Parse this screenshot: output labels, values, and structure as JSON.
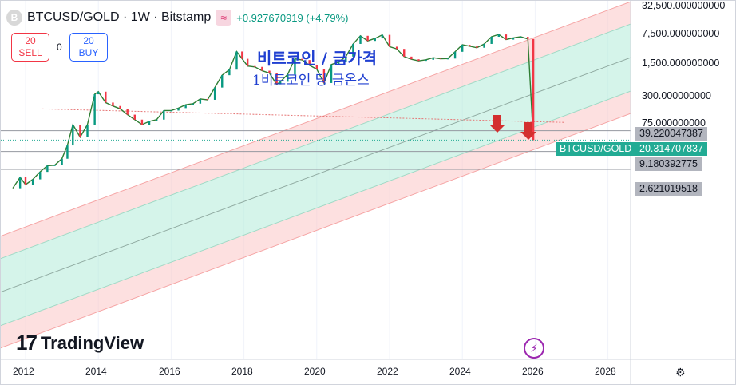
{
  "header": {
    "logo_letter": "B",
    "symbol_title": "BTCUSD/GOLD · 1W · Bitstamp",
    "wave_icon": "wave-icon",
    "change": "+0.927670919 (+4.79%)"
  },
  "trade": {
    "sell_value": "20",
    "sell_label": "SELL",
    "spread": "0",
    "buy_value": "20",
    "buy_label": "BUY"
  },
  "annotation": {
    "line1": "비트코인 / 금가격",
    "line2": "1비트코인 당 금온스"
  },
  "watermark": "TradingView",
  "y_ticks": [
    "32,500.000000000",
    "7,500.000000000",
    "1,500.000000000",
    "300.000000000",
    "75.000000000"
  ],
  "price_tags": {
    "upper": "39.220047387",
    "symbol": "BTCUSD/GOLD",
    "current": "20.314707837",
    "lower1": "9.180392775",
    "lower2": "2.621019518"
  },
  "x_ticks": [
    "2012",
    "2014",
    "2016",
    "2018",
    "2020",
    "2022",
    "2024",
    "2026",
    "2028"
  ],
  "colors": {
    "up": "#089981",
    "down": "#f23645",
    "mid_band": "#b2ebd9",
    "outer_band": "#fbc6c6",
    "accent": "#2962ff",
    "arrow": "#d32f2f"
  },
  "chart_data": {
    "type": "candlestick",
    "title": "BTCUSD/GOLD · 1W · Bitstamp",
    "scale": "log",
    "x_range": [
      2011.6,
      2028.7
    ],
    "y_range": [
      0.4,
      32500
    ],
    "series": [
      {
        "name": "BTCUSD/GOLD",
        "x": [
          2011.65,
          2011.85,
          2012.0,
          2012.2,
          2012.4,
          2012.6,
          2012.8,
          2013.0,
          2013.15,
          2013.3,
          2013.5,
          2013.7,
          2013.9,
          2014.0,
          2014.2,
          2014.4,
          2014.6,
          2014.8,
          2015.0,
          2015.2,
          2015.4,
          2015.6,
          2015.8,
          2016.0,
          2016.2,
          2016.4,
          2016.6,
          2016.8,
          2017.0,
          2017.2,
          2017.4,
          2017.6,
          2017.8,
          2017.95,
          2018.1,
          2018.3,
          2018.5,
          2018.7,
          2018.9,
          2019.0,
          2019.2,
          2019.4,
          2019.6,
          2019.8,
          2020.0,
          2020.2,
          2020.4,
          2020.6,
          2020.8,
          2021.0,
          2021.2,
          2021.4,
          2021.6,
          2021.8,
          2022.0,
          2022.2,
          2022.4,
          2022.6,
          2022.8,
          2023.0,
          2023.2,
          2023.4,
          2023.6,
          2023.8,
          2024.0,
          2024.2,
          2024.4,
          2024.6,
          2024.8,
          2025.0,
          2025.2,
          2025.4,
          2025.6,
          2025.8,
          2025.95
        ],
        "values": [
          0.7,
          1.5,
          0.9,
          1.3,
          2.2,
          3.4,
          3.5,
          5.5,
          14,
          60,
          25,
          60,
          500,
          600,
          280,
          220,
          180,
          120,
          85,
          60,
          75,
          85,
          160,
          160,
          190,
          240,
          260,
          360,
          340,
          800,
          1900,
          2800,
          10000,
          6000,
          3600,
          3400,
          2600,
          2200,
          1000,
          1200,
          2000,
          6000,
          5500,
          3800,
          2900,
          1100,
          4000,
          4800,
          7000,
          17000,
          30000,
          21000,
          25000,
          32000,
          14000,
          12000,
          7000,
          5800,
          5200,
          5600,
          6500,
          6000,
          6100,
          9800,
          16000,
          14500,
          13000,
          17000,
          28000,
          33000,
          23000,
          26000,
          28000,
          24000,
          20.314707837
        ]
      }
    ],
    "annotations": [
      "비트코인 / 금가격",
      "1비트코인 당 금온스"
    ],
    "levels": [
      39.220047387,
      9.180392775,
      2.621019518
    ]
  }
}
